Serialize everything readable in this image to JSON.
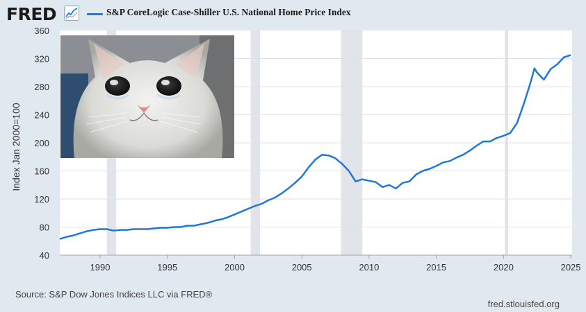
{
  "header": {
    "logo_text": "FRED",
    "logo_icon": "trend-chart-icon",
    "legend_label": "S&P CoreLogic Case-Shiller U.S. National Home Price Index"
  },
  "footer": {
    "source": "Source: S&P Dow Jones Indices LLC via FRED®",
    "site": "fred.stlouisfed.org"
  },
  "overlay_image": {
    "subject": "crying-cat-photo"
  },
  "colors": {
    "line": "#1f77d8",
    "recession": "#e1e5ea",
    "background": "#e1e9f0",
    "plot_bg": "#ffffff",
    "grid": "#dde2e7"
  },
  "chart_data": {
    "type": "line",
    "title": "S&P CoreLogic Case-Shiller U.S. National Home Price Index",
    "xlabel": "",
    "ylabel": "Index Jan 2000=100",
    "xlim": [
      1987.0,
      2025.1
    ],
    "ylim": [
      40,
      360
    ],
    "yticks": [
      40,
      80,
      120,
      160,
      200,
      240,
      280,
      320,
      360
    ],
    "xticks": [
      1990,
      1995,
      2000,
      2005,
      2010,
      2015,
      2020,
      2025
    ],
    "grid": true,
    "recessions": [
      [
        1990.5,
        1991.2
      ],
      [
        2001.2,
        2001.9
      ],
      [
        2007.9,
        2009.5
      ],
      [
        2020.1,
        2020.35
      ]
    ],
    "series": [
      {
        "name": "S&P CoreLogic Case-Shiller U.S. National Home Price Index",
        "x": [
          1987.0,
          1987.5,
          1988.0,
          1988.5,
          1989.0,
          1989.5,
          1990.0,
          1990.5,
          1991.0,
          1991.5,
          1992.0,
          1992.5,
          1993.0,
          1993.5,
          1994.0,
          1994.5,
          1995.0,
          1995.5,
          1996.0,
          1996.5,
          1997.0,
          1997.5,
          1998.0,
          1998.5,
          1999.0,
          1999.5,
          2000.0,
          2000.5,
          2001.0,
          2001.5,
          2002.0,
          2002.5,
          2003.0,
          2003.5,
          2004.0,
          2004.5,
          2005.0,
          2005.5,
          2006.0,
          2006.5,
          2007.0,
          2007.5,
          2008.0,
          2008.5,
          2009.0,
          2009.5,
          2010.0,
          2010.5,
          2011.0,
          2011.5,
          2012.0,
          2012.5,
          2013.0,
          2013.5,
          2014.0,
          2014.5,
          2015.0,
          2015.5,
          2016.0,
          2016.5,
          2017.0,
          2017.5,
          2018.0,
          2018.5,
          2019.0,
          2019.5,
          2020.0,
          2020.5,
          2021.0,
          2021.5,
          2022.0,
          2022.3,
          2022.5,
          2023.0,
          2023.5,
          2024.0,
          2024.5,
          2025.0
        ],
        "values": [
          63,
          66,
          68,
          71,
          74,
          76,
          77,
          77,
          75,
          76,
          76,
          77,
          77,
          77,
          78,
          79,
          79,
          80,
          80,
          82,
          82,
          84,
          86,
          89,
          91,
          94,
          98,
          102,
          106,
          110,
          113,
          118,
          122,
          128,
          135,
          143,
          152,
          165,
          176,
          183,
          182,
          178,
          170,
          160,
          145,
          148,
          146,
          144,
          137,
          140,
          135,
          143,
          145,
          155,
          160,
          163,
          167,
          172,
          174,
          179,
          183,
          189,
          196,
          202,
          202,
          207,
          210,
          214,
          228,
          255,
          285,
          306,
          300,
          290,
          305,
          312,
          322,
          325
        ]
      }
    ]
  }
}
